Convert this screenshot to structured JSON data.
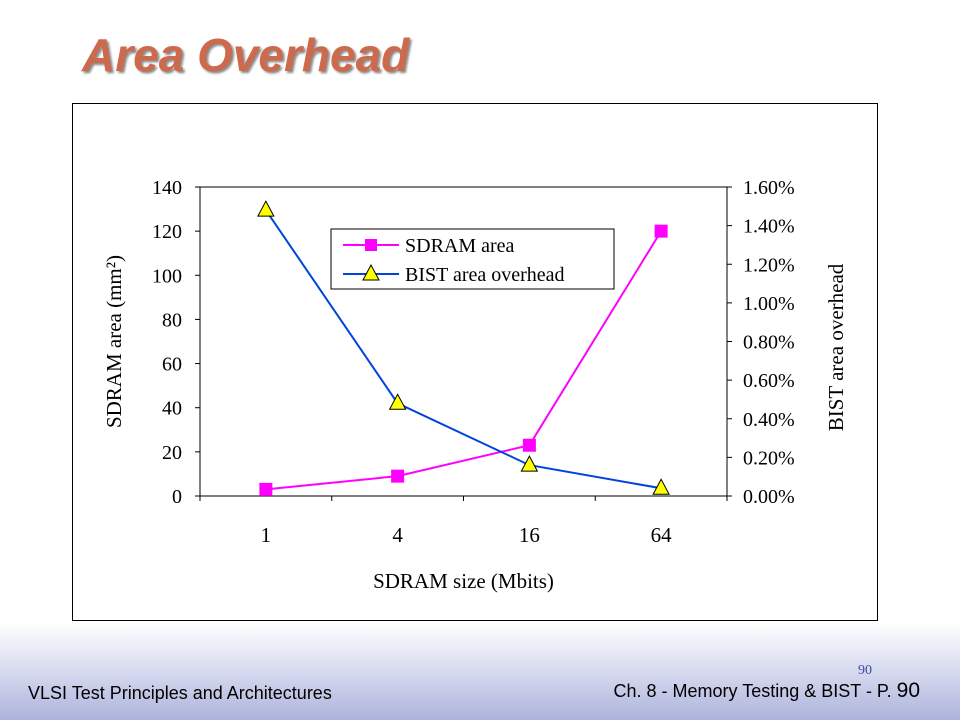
{
  "slide": {
    "title": "Area Overhead",
    "footer_left": "VLSI Test Principles and Architectures",
    "footer_right_text": "Ch. 8 - Memory Testing & BIST - P.",
    "footer_right_num": "90",
    "slide_number": "90"
  },
  "colors": {
    "title": "#cd6a4e",
    "sdram_series": "#ff00ff",
    "bist_series": "#0044dd",
    "bist_marker_fill": "#ffff00"
  },
  "chart_data": {
    "type": "line",
    "categories": [
      "1",
      "4",
      "16",
      "64"
    ],
    "xlabel": "SDRAM size (Mbits)",
    "ylabel_left": "SDRAM area (mm²)",
    "ylabel_right": "BIST area overhead",
    "ylim_left": [
      0,
      140
    ],
    "yticks_left": [
      "0",
      "20",
      "40",
      "60",
      "80",
      "100",
      "120",
      "140"
    ],
    "ylim_right": [
      0,
      1.6
    ],
    "yticks_right": [
      "0.00%",
      "0.20%",
      "0.40%",
      "0.60%",
      "0.80%",
      "1.00%",
      "1.20%",
      "1.40%",
      "1.60%"
    ],
    "grid": false,
    "legend_position": "top-center",
    "series": [
      {
        "name": "SDRAM area",
        "axis": "left",
        "marker": "square",
        "values": [
          3,
          9,
          23,
          120
        ]
      },
      {
        "name": "BIST area overhead",
        "axis": "right",
        "marker": "triangle",
        "values": [
          1.48,
          0.48,
          0.16,
          0.04
        ]
      }
    ]
  }
}
